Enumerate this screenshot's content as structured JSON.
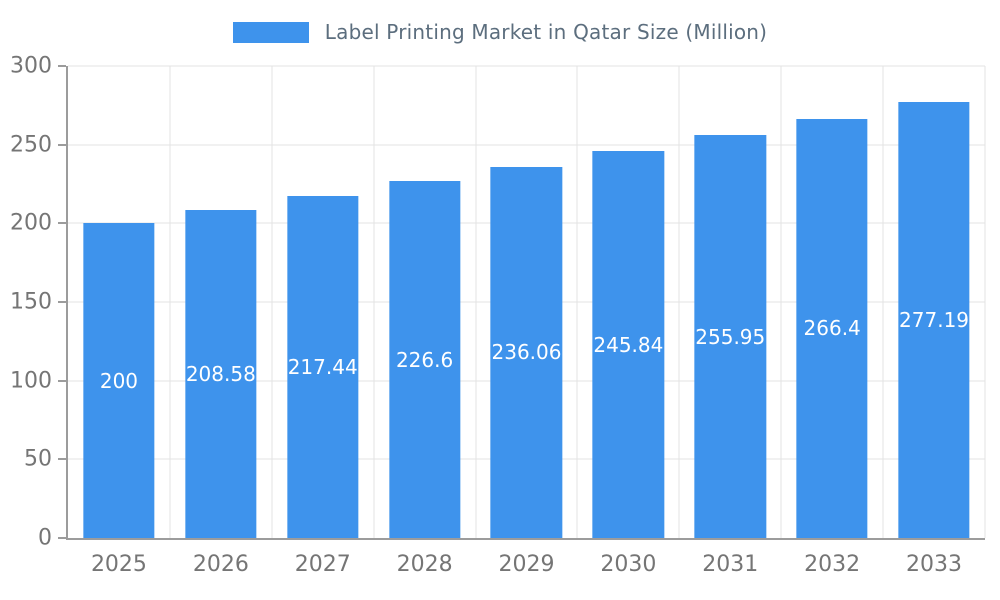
{
  "chart_data": {
    "type": "bar",
    "title": "Label Printing Market in Qatar Size (Million)",
    "categories": [
      "2025",
      "2026",
      "2027",
      "2028",
      "2029",
      "2030",
      "2031",
      "2032",
      "2033"
    ],
    "values": [
      200,
      208.58,
      217.44,
      226.6,
      236.06,
      245.84,
      255.95,
      266.4,
      277.19
    ],
    "value_labels": [
      "200",
      "208.58",
      "217.44",
      "226.6",
      "236.06",
      "245.84",
      "255.95",
      "266.4",
      "277.19"
    ],
    "xlabel": "",
    "ylabel": "",
    "ylim": [
      0,
      300
    ],
    "yticks": [
      0,
      50,
      100,
      150,
      200,
      250,
      300
    ],
    "grid": true,
    "legend_position": "top",
    "colors": {
      "bar": "#3e93ec",
      "bar_label": "#ffffff",
      "tick_label": "#757575",
      "gridline": "#e3e3e3",
      "axis": "#9c9c9c",
      "title": "#5c6e7e"
    }
  }
}
